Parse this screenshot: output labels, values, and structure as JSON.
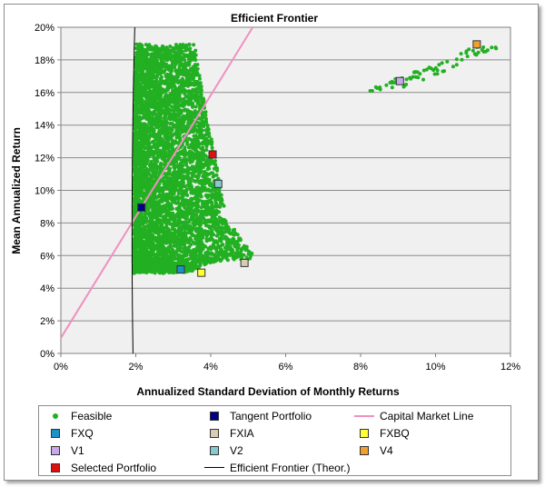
{
  "chart_data": {
    "type": "scatter",
    "title": "Efficient Frontier",
    "xlabel": "Annualized Standard Deviation of Monthly Returns",
    "ylabel": "Mean Annualized Return",
    "xlim": [
      0,
      0.12
    ],
    "ylim": [
      0,
      0.2
    ],
    "x_ticks": [
      "0%",
      "2%",
      "4%",
      "6%",
      "8%",
      "10%",
      "12%"
    ],
    "y_ticks": [
      "0%",
      "2%",
      "4%",
      "6%",
      "8%",
      "10%",
      "12%",
      "14%",
      "16%",
      "18%",
      "20%"
    ],
    "grid": "horizontal",
    "legend_position": "bottom",
    "colors": {
      "feasible": "#22b022",
      "tangent": "#00008b",
      "fxq": "#1e90c8",
      "fxia": "#d8ccb4",
      "fxbq": "#ffff33",
      "v1": "#c8a8e8",
      "v2": "#88c8d0",
      "v4": "#f0a030",
      "selected": "#e01010",
      "cml": "#f090c0",
      "frontier": "#000000"
    },
    "legend": [
      {
        "key": "feasible",
        "label": "Feasible",
        "symbol": "dot"
      },
      {
        "key": "tangent",
        "label": "Tangent Portfolio",
        "symbol": "square"
      },
      {
        "key": "cml",
        "label": "Capital Market Line",
        "symbol": "line"
      },
      {
        "key": "fxq",
        "label": "FXQ",
        "symbol": "square"
      },
      {
        "key": "fxia",
        "label": "FXIA",
        "symbol": "square"
      },
      {
        "key": "fxbq",
        "label": "FXBQ",
        "symbol": "square"
      },
      {
        "key": "v1",
        "label": "V1",
        "symbol": "square"
      },
      {
        "key": "v2",
        "label": "V2",
        "symbol": "square"
      },
      {
        "key": "v4",
        "label": "V4",
        "symbol": "square"
      },
      {
        "key": "selected",
        "label": "Selected Portfolio",
        "symbol": "square"
      },
      {
        "key": "frontier",
        "label": "Efficient Frontier (Theor.)",
        "symbol": "line"
      }
    ],
    "points": [
      {
        "key": "tangent",
        "x": 0.0215,
        "y": 0.0895
      },
      {
        "key": "fxq",
        "x": 0.032,
        "y": 0.0515
      },
      {
        "key": "fxia",
        "x": 0.049,
        "y": 0.0555
      },
      {
        "key": "fxbq",
        "x": 0.0375,
        "y": 0.0495
      },
      {
        "key": "v1",
        "x": 0.0905,
        "y": 0.167
      },
      {
        "key": "v2",
        "x": 0.042,
        "y": 0.104
      },
      {
        "key": "v4",
        "x": 0.111,
        "y": 0.1895
      },
      {
        "key": "selected",
        "x": 0.0405,
        "y": 0.122
      }
    ],
    "capital_market_line": {
      "intercept": 0.0095,
      "slope": 3.72
    },
    "efficient_frontier_theor": {
      "min_sd": 0.019,
      "min_sd_return": 0.074,
      "a": 0.019,
      "b": 0.042
    }
  }
}
